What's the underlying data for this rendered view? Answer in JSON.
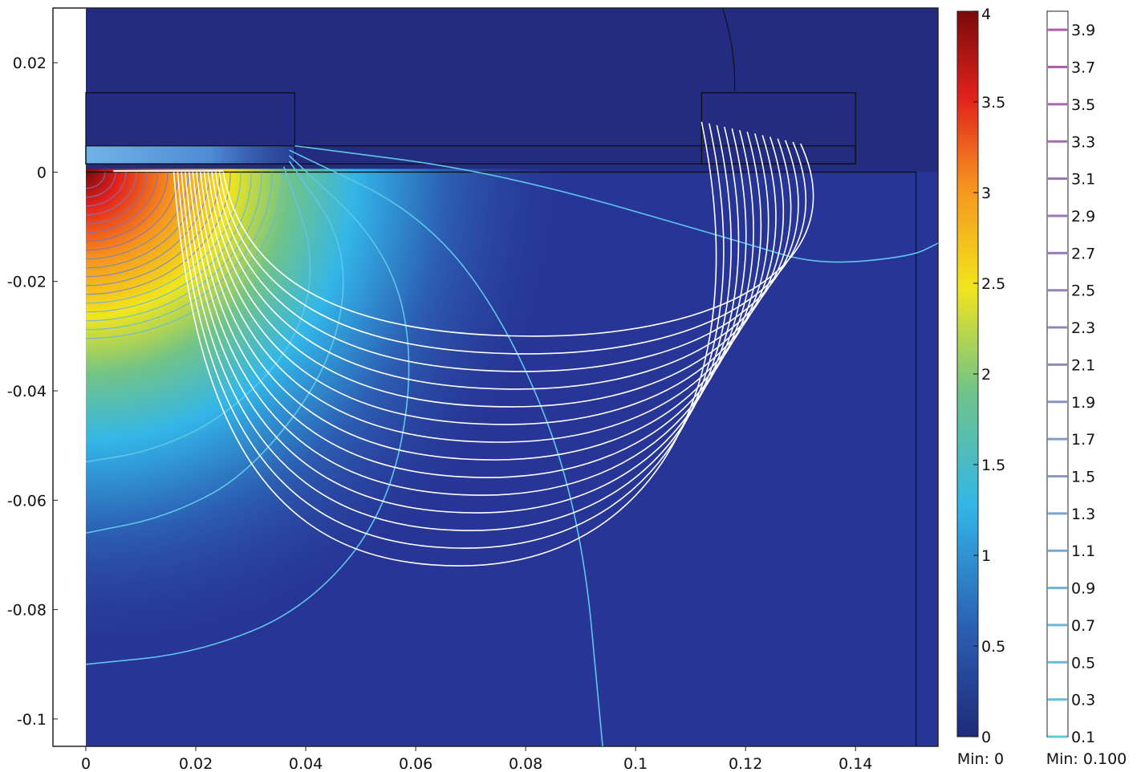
{
  "chart_data": {
    "type": "heatmap",
    "xlim": [
      0,
      0.155
    ],
    "ylim": [
      -0.105,
      0.03
    ],
    "x_ticks": [
      "0",
      "0.02",
      "0.04",
      "0.06",
      "0.08",
      "0.1",
      "0.12",
      "0.14"
    ],
    "x_tick_values": [
      0,
      0.02,
      0.04,
      0.06,
      0.08,
      0.1,
      0.12,
      0.14
    ],
    "y_ticks": [
      "0.02",
      "0",
      "-0.02",
      "-0.04",
      "-0.06",
      "-0.08",
      "-0.1"
    ],
    "y_tick_values": [
      0.02,
      0,
      -0.02,
      -0.04,
      -0.06,
      -0.08,
      -0.1
    ],
    "surface_colorbar": {
      "range": [
        0,
        4
      ],
      "ticks": [
        "0",
        "0.5",
        "1",
        "1.5",
        "2",
        "2.5",
        "3",
        "3.5",
        "4"
      ],
      "tick_values": [
        0,
        0.5,
        1,
        1.5,
        2,
        2.5,
        3,
        3.5,
        4
      ],
      "min_label": "Min: 0",
      "colormap": [
        "#1f2a7a",
        "#2c5fb3",
        "#33b6e8",
        "#72c486",
        "#f2e51c",
        "#f6921e",
        "#e2221d",
        "#7a0a0a"
      ]
    },
    "contour_legend": {
      "levels": [
        "3.9",
        "3.7",
        "3.5",
        "3.3",
        "3.1",
        "2.9",
        "2.7",
        "2.5",
        "2.3",
        "2.1",
        "1.9",
        "1.7",
        "1.5",
        "1.3",
        "1.1",
        "0.9",
        "0.7",
        "0.5",
        "0.3",
        "0.1"
      ],
      "level_values": [
        3.9,
        3.7,
        3.5,
        3.3,
        3.1,
        2.9,
        2.7,
        2.5,
        2.3,
        2.1,
        1.9,
        1.7,
        1.5,
        1.3,
        1.1,
        0.9,
        0.7,
        0.5,
        0.3,
        0.1
      ],
      "min_label": "Min: 0.100",
      "color_low": "#5ec8e0",
      "color_high": "#b05aa8"
    },
    "geometry": {
      "left_strip_x": [
        -0.006,
        0
      ],
      "left_block": {
        "x": [
          0,
          0.038
        ],
        "y": [
          0.0015,
          0.0145
        ]
      },
      "right_block": {
        "x": [
          0.112,
          0.14
        ],
        "y": [
          0.0015,
          0.0145
        ]
      },
      "thin_layer": {
        "x": [
          0,
          0.14
        ],
        "y": [
          0.0015,
          0.0048
        ]
      },
      "half_space": {
        "x": [
          0,
          0.151
        ],
        "y": [
          -0.105,
          0
        ]
      },
      "arc_top": {
        "x": [
          0.117,
          0.118
        ],
        "y": [
          0.03,
          0.0148
        ]
      }
    },
    "field_source": {
      "x": 0,
      "y": 0,
      "radius": 0.038,
      "peak": 4
    },
    "streamlines": {
      "count": 14,
      "start_x": [
        0.016,
        0.025
      ],
      "end_x": [
        0.112,
        0.13
      ],
      "min_y": [
        -0.03,
        -0.072
      ]
    },
    "contours": [
      {
        "points": [
          [
            0.038,
            0.0048
          ],
          [
            0.075,
            0
          ],
          [
            0.12,
            -0.013
          ],
          [
            0.133,
            -0.017
          ],
          [
            0.15,
            -0.0155
          ],
          [
            0.155,
            -0.013
          ]
        ]
      },
      {
        "points": [
          [
            0.037,
            0.004
          ],
          [
            0.062,
            -0.008
          ],
          [
            0.078,
            -0.03
          ],
          [
            0.09,
            -0.062
          ],
          [
            0.094,
            -0.105
          ]
        ]
      },
      {
        "points": [
          [
            0.037,
            0.003
          ],
          [
            0.055,
            -0.014
          ],
          [
            0.06,
            -0.035
          ],
          [
            0.055,
            -0.062
          ],
          [
            0.04,
            -0.08
          ],
          [
            0.02,
            -0.088
          ],
          [
            0,
            -0.09
          ]
        ]
      },
      {
        "points": [
          [
            0.037,
            0.002
          ],
          [
            0.048,
            -0.014
          ],
          [
            0.045,
            -0.035
          ],
          [
            0.03,
            -0.055
          ],
          [
            0.015,
            -0.063
          ],
          [
            0,
            -0.066
          ]
        ]
      },
      {
        "points": [
          [
            0.036,
            0.001
          ],
          [
            0.042,
            -0.016
          ],
          [
            0.038,
            -0.032
          ],
          [
            0.025,
            -0.045
          ],
          [
            0.012,
            -0.051
          ],
          [
            0,
            -0.053
          ]
        ]
      }
    ]
  }
}
